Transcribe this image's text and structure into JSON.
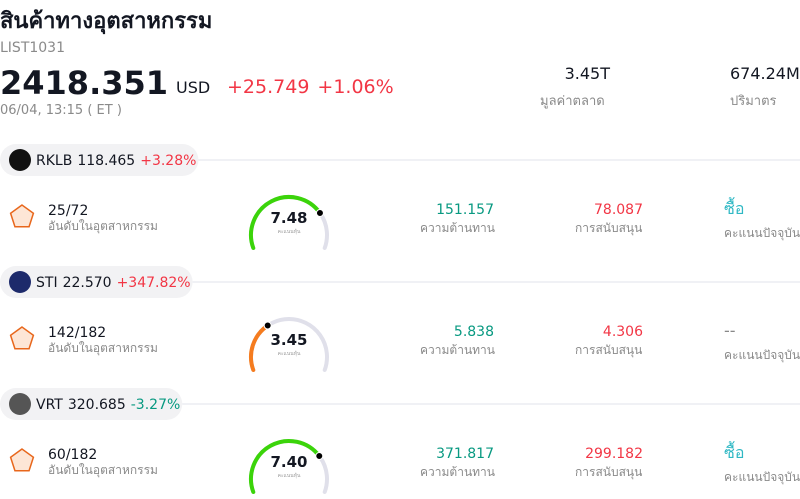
{
  "header": {
    "title": "สินค้าทางอุตสาหกรรม",
    "symbol": "LIST1031",
    "price": "2418.351",
    "currency": "USD",
    "change": "+25.749",
    "change_percent": "+1.06%",
    "change_color": "#f23645",
    "time": "06/04, 13:15 ( ET )"
  },
  "stats": [
    {
      "value": "3.45T",
      "label": "มูลค่าตลาด"
    },
    {
      "value": "674.24M",
      "label": "ปริมาตร"
    }
  ],
  "gauge_range": [
    0,
    10
  ],
  "rows": [
    {
      "ticker": "RKLB",
      "price": "118.465",
      "change": "+3.28%",
      "change_color": "#f23645",
      "rank": "25/72",
      "rank_label": "อันดับในอุตสาหกรรม",
      "score": {
        "value": 7.48,
        "label": "7.48"
      },
      "score_color": "#3bd40a",
      "score_label": "คะแนนหุ้น",
      "resistance": "151.157",
      "resistance_label": "ความต้านทาน",
      "support": "78.087",
      "support_label": "การสนับสนุน",
      "rating": "ซื้อ",
      "rating_color": "#2fb8c4",
      "rating_label": "คะแนนปัจจุบัน"
    },
    {
      "ticker": "STI",
      "price": "22.570",
      "change": "+347.82%",
      "change_color": "#f23645",
      "rank": "142/182",
      "rank_label": "อันดับในอุตสาหกรรม",
      "score": {
        "value": 3.45,
        "label": "3.45"
      },
      "score_color": "#f57c1f",
      "score_label": "คะแนนหุ้น",
      "resistance": "5.838",
      "resistance_label": "ความต้านทาน",
      "support": "4.306",
      "support_label": "การสนับสนุน",
      "rating": "--",
      "rating_color": "#888888",
      "rating_label": "คะแนนปัจจุบัน"
    },
    {
      "ticker": "VRT",
      "price": "320.685",
      "change": "-3.27%",
      "change_color": "#089981",
      "rank": "60/182",
      "rank_label": "อันดับในอุตสาหกรรม",
      "score": {
        "value": 7.4,
        "label": "7.40"
      },
      "score_color": "#3bd40a",
      "score_label": "คะแนนหุ้น",
      "resistance": "371.817",
      "resistance_label": "ความต้านทาน",
      "support": "299.182",
      "support_label": "การสนับสนุน",
      "rating": "ซื้อ",
      "rating_color": "#2fb8c4",
      "rating_label": "คะแนนปัจจุบัน"
    }
  ]
}
